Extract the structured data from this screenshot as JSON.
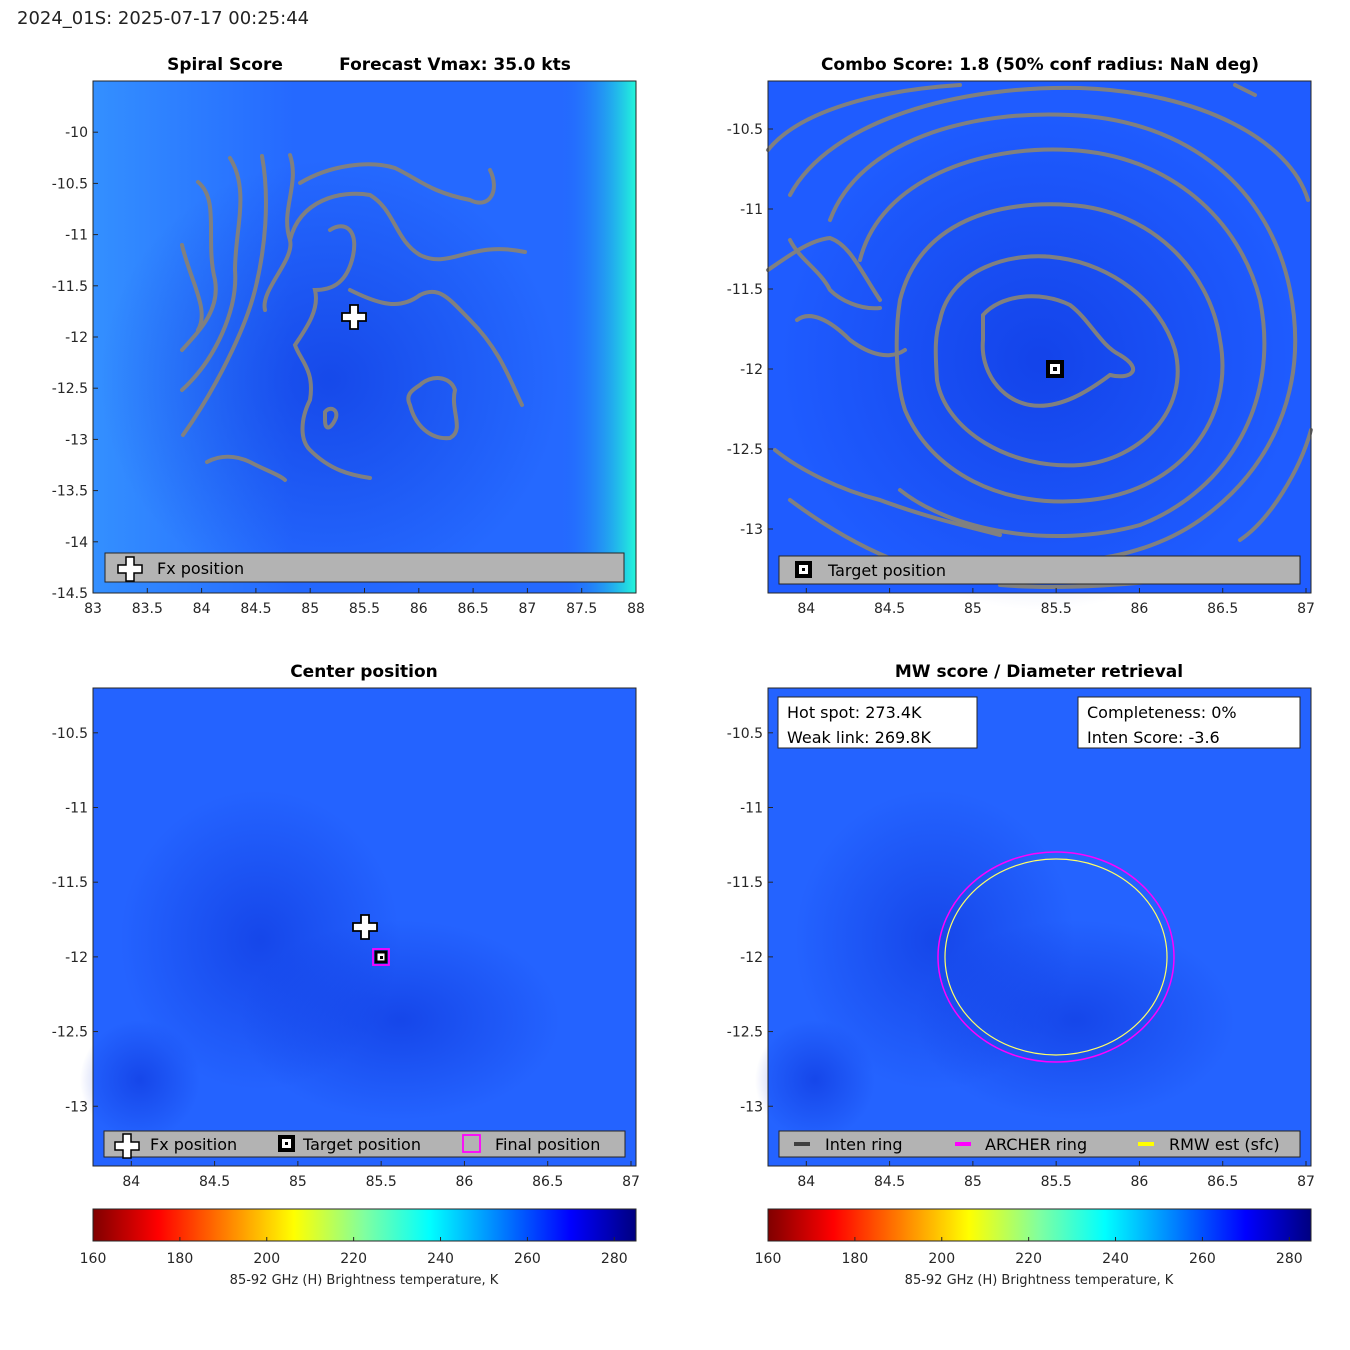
{
  "header": {
    "title": "2024_01S: 2025-07-17 00:25:44"
  },
  "colors": {
    "field_base": "#1f5cff",
    "contour": "#808080",
    "legend_bg": "#b3b3b3",
    "archer_ring": "#ff00ff",
    "rmw_ring": "#ffff00",
    "inten_ring": "#404040"
  },
  "icons": {
    "fx": "plus-marker-icon",
    "target": "square-dot-marker-icon",
    "final": "magenta-square-marker-icon"
  },
  "chart_data": [
    {
      "type": "heatmap",
      "panel": "top-left",
      "title_left": "Spiral Score",
      "title_right": "Forecast Vmax: 35.0 kts",
      "xlim": [
        83,
        88
      ],
      "ylim": [
        -14.5,
        -9.5
      ],
      "xticks": [
        83,
        83.5,
        84,
        84.5,
        85,
        85.5,
        86,
        86.5,
        87,
        87.5,
        88
      ],
      "yticks": [
        -10,
        -10.5,
        -11,
        -11.5,
        -12,
        -12.5,
        -13,
        -13.5,
        -14,
        -14.5
      ],
      "markers": [
        {
          "name": "Fx position",
          "x": 85.4,
          "y": -11.8,
          "symbol": "plus"
        }
      ],
      "legend": [
        "Fx position"
      ]
    },
    {
      "type": "heatmap",
      "panel": "top-right",
      "title": "Combo Score: 1.8  (50% conf radius: NaN deg)",
      "xlim": [
        83.77,
        87.03
      ],
      "ylim": [
        -13.4,
        -10.2
      ],
      "xticks": [
        84,
        84.5,
        85,
        85.5,
        86,
        86.5,
        87
      ],
      "yticks": [
        -10.5,
        -11,
        -11.5,
        -12,
        -12.5,
        -13
      ],
      "markers": [
        {
          "name": "Target position",
          "x": 85.5,
          "y": -12,
          "symbol": "square-dot"
        }
      ],
      "legend": [
        "Target position"
      ]
    },
    {
      "type": "heatmap",
      "panel": "bottom-left",
      "title": "Center position",
      "xlim": [
        83.77,
        87.03
      ],
      "ylim": [
        -13.4,
        -10.2
      ],
      "xticks": [
        84,
        84.5,
        85,
        85.5,
        86,
        86.5,
        87
      ],
      "yticks": [
        -10.5,
        -11,
        -11.5,
        -12,
        -12.5,
        -13
      ],
      "markers": [
        {
          "name": "Fx position",
          "x": 85.4,
          "y": -11.8,
          "symbol": "plus"
        },
        {
          "name": "Target position",
          "x": 85.5,
          "y": -12,
          "symbol": "square-dot"
        },
        {
          "name": "Final position",
          "x": 85.5,
          "y": -12,
          "symbol": "magenta-square"
        }
      ],
      "legend": [
        "Fx position",
        "Target position",
        "Final position"
      ]
    },
    {
      "type": "heatmap",
      "panel": "bottom-right",
      "title": "MW score / Diameter retrieval",
      "xlim": [
        83.77,
        87.03
      ],
      "ylim": [
        -13.4,
        -10.2
      ],
      "xticks": [
        84,
        84.5,
        85,
        85.5,
        86,
        86.5,
        87
      ],
      "yticks": [
        -10.5,
        -11,
        -11.5,
        -12,
        -12.5,
        -13
      ],
      "info_left": [
        "Hot spot: 273.4K",
        "Weak link: 269.8K"
      ],
      "info_right": [
        "Completeness: 0%",
        "Inten Score: -3.6"
      ],
      "rings": [
        {
          "name": "ARCHER ring",
          "cx": 85.5,
          "cy": -12,
          "rx": 0.71,
          "ry": 0.7,
          "color": "#ff00ff"
        },
        {
          "name": "RMW est (sfc)",
          "cx": 85.5,
          "cy": -12,
          "rx": 0.67,
          "ry": 0.65,
          "color": "#ffff66"
        }
      ],
      "legend": [
        "Inten ring",
        "ARCHER ring",
        "RMW est (sfc)"
      ]
    }
  ],
  "colorbars": [
    {
      "min": 160,
      "max": 285,
      "ticks": [
        160,
        180,
        200,
        220,
        240,
        260,
        280
      ],
      "label": "85-92 GHz (H) Brightness temperature, K"
    },
    {
      "min": 160,
      "max": 285,
      "ticks": [
        160,
        180,
        200,
        220,
        240,
        260,
        280
      ],
      "label": "85-92 GHz (H) Brightness temperature, K"
    }
  ]
}
